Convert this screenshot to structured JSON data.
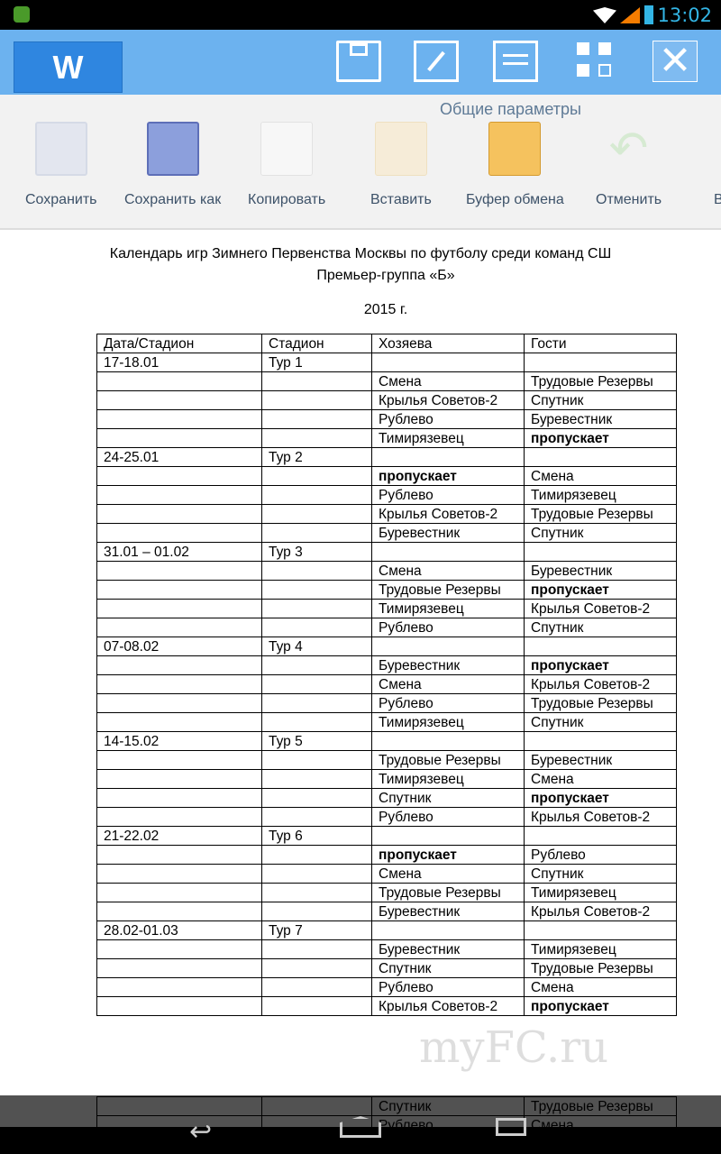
{
  "status": {
    "time": "13:02"
  },
  "app": {
    "logo": "W",
    "toolbar_icons": [
      "save-icon",
      "edit-icon",
      "list-icon",
      "grid-icon",
      "close-icon"
    ]
  },
  "ribbon": {
    "group_title": "Общие параметры",
    "buttons": [
      {
        "label": "Сохранить",
        "icon": "save-icon"
      },
      {
        "label": "Сохранить как",
        "icon": "save-as-icon"
      },
      {
        "label": "Копировать",
        "icon": "copy-icon"
      },
      {
        "label": "Вставить",
        "icon": "paste-icon"
      },
      {
        "label": "Буфер обмена",
        "icon": "clipboard-icon"
      },
      {
        "label": "Отменить",
        "icon": "undo-icon"
      },
      {
        "label": "В",
        "icon": ""
      }
    ]
  },
  "document": {
    "title": "Календарь игр Зимнего Первенства Москвы по футболу среди команд СШ",
    "subtitle": "Премьер-группа «Б»",
    "year": "2015 г.",
    "headers": [
      "Дата/Стадион",
      "Стадион",
      "Хозяева",
      "Гости"
    ],
    "bye": "пропускает",
    "rounds": [
      {
        "date": "17-18.01",
        "tour": "Тур 1",
        "games": [
          [
            "Смена",
            "Трудовые Резервы"
          ],
          [
            "Крылья Советов-2",
            "Спутник"
          ],
          [
            "Рублево",
            "Буревестник"
          ],
          [
            "Тимирязевец",
            "пропускает"
          ]
        ]
      },
      {
        "date": "24-25.01",
        "tour": "Тур 2",
        "games": [
          [
            "пропускает",
            "Смена"
          ],
          [
            "Рублево",
            "Тимирязевец"
          ],
          [
            "Крылья Советов-2",
            "Трудовые Резервы"
          ],
          [
            "Буревестник",
            "Спутник"
          ]
        ]
      },
      {
        "date": "31.01 – 01.02",
        "tour": "Тур 3",
        "games": [
          [
            "Смена",
            "Буревестник"
          ],
          [
            "Трудовые Резервы",
            "пропускает"
          ],
          [
            "Тимирязевец",
            "Крылья Советов-2"
          ],
          [
            "Рублево",
            "Спутник"
          ]
        ]
      },
      {
        "date": "07-08.02",
        "tour": "Тур 4",
        "games": [
          [
            "Буревестник",
            "пропускает"
          ],
          [
            "Смена",
            "Крылья Советов-2"
          ],
          [
            "Рублево",
            "Трудовые Резервы"
          ],
          [
            "Тимирязевец",
            "Спутник"
          ]
        ]
      },
      {
        "date": "14-15.02",
        "tour": "Тур 5",
        "games": [
          [
            "Трудовые Резервы",
            "Буревестник"
          ],
          [
            "Тимирязевец",
            "Смена"
          ],
          [
            "Спутник",
            "пропускает"
          ],
          [
            "Рублево",
            "Крылья Советов-2"
          ]
        ]
      },
      {
        "date": "21-22.02",
        "tour": "Тур 6",
        "games": [
          [
            "пропускает",
            "Рублево"
          ],
          [
            "Смена",
            "Спутник"
          ],
          [
            "Трудовые Резервы",
            "Тимирязевец"
          ],
          [
            "Буревестник",
            "Крылья Советов-2"
          ]
        ]
      },
      {
        "date": "28.02-01.03",
        "tour": "Тур 7",
        "games": [
          [
            "Буревестник",
            "Тимирязевец"
          ],
          [
            "Спутник",
            "Трудовые Резервы"
          ],
          [
            "Рублево",
            "Смена"
          ],
          [
            "Крылья Советов-2",
            "пропускает"
          ]
        ]
      }
    ],
    "overflow_rows": [
      [
        "Спутник",
        "Трудовые Резервы"
      ],
      [
        "Рублево",
        "Смена"
      ]
    ]
  },
  "watermark": "myFC.ru"
}
